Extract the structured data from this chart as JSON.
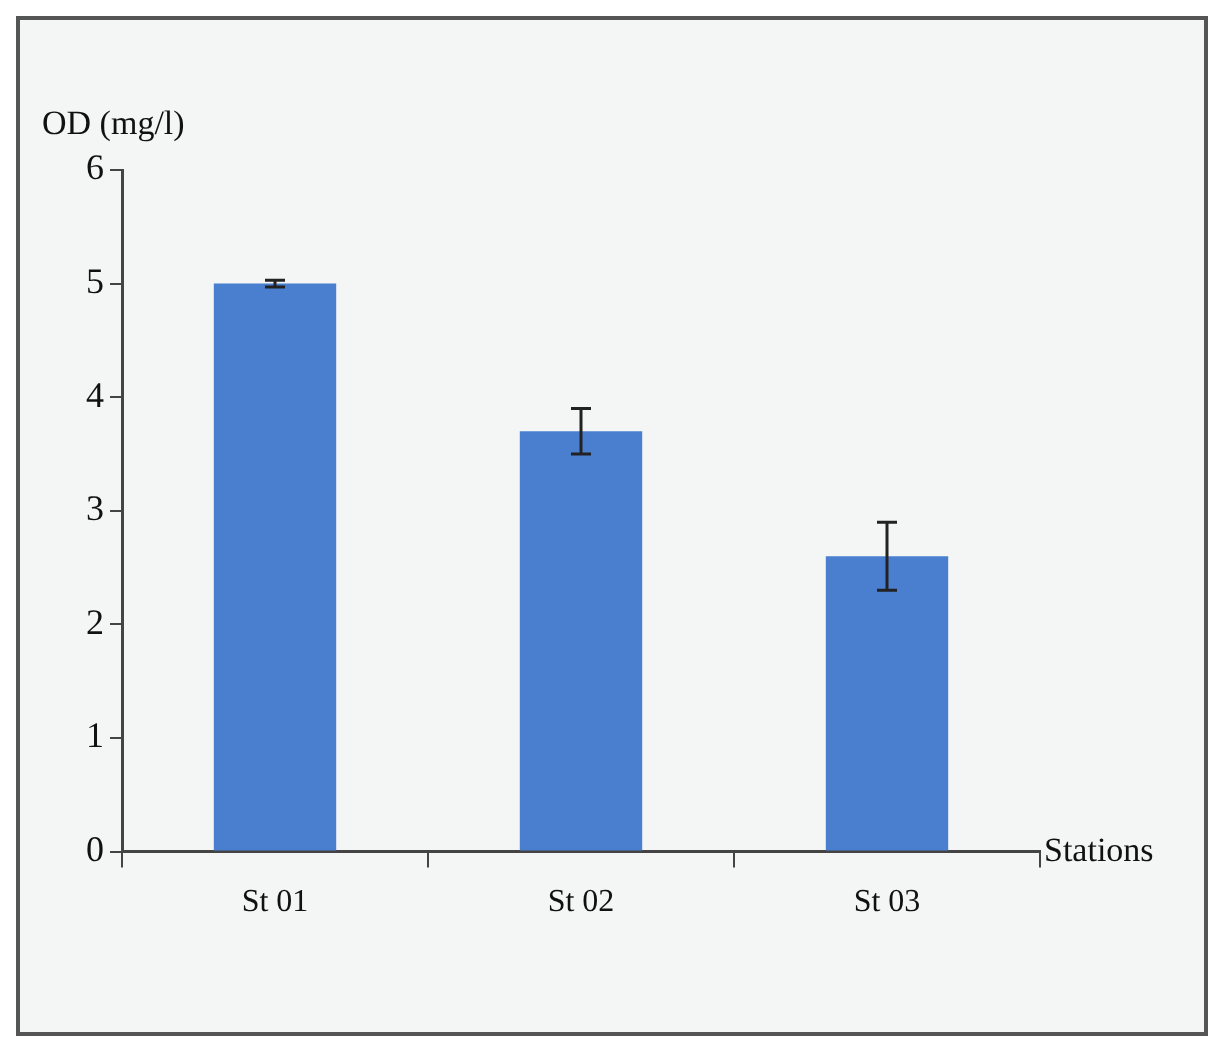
{
  "chart_data": {
    "type": "bar",
    "xlabel": "Stations",
    "ylabel": "OD (mg/l)",
    "categories": [
      "St 01",
      "St 02",
      "St 03"
    ],
    "values": [
      5.0,
      3.7,
      2.6
    ],
    "errors": [
      0.03,
      0.2,
      0.3
    ],
    "color": "#4a7fd0",
    "ylim": [
      0,
      6
    ],
    "yticks": [
      0,
      1,
      2,
      3,
      4,
      5,
      6
    ],
    "grid": false,
    "legend": false
  }
}
